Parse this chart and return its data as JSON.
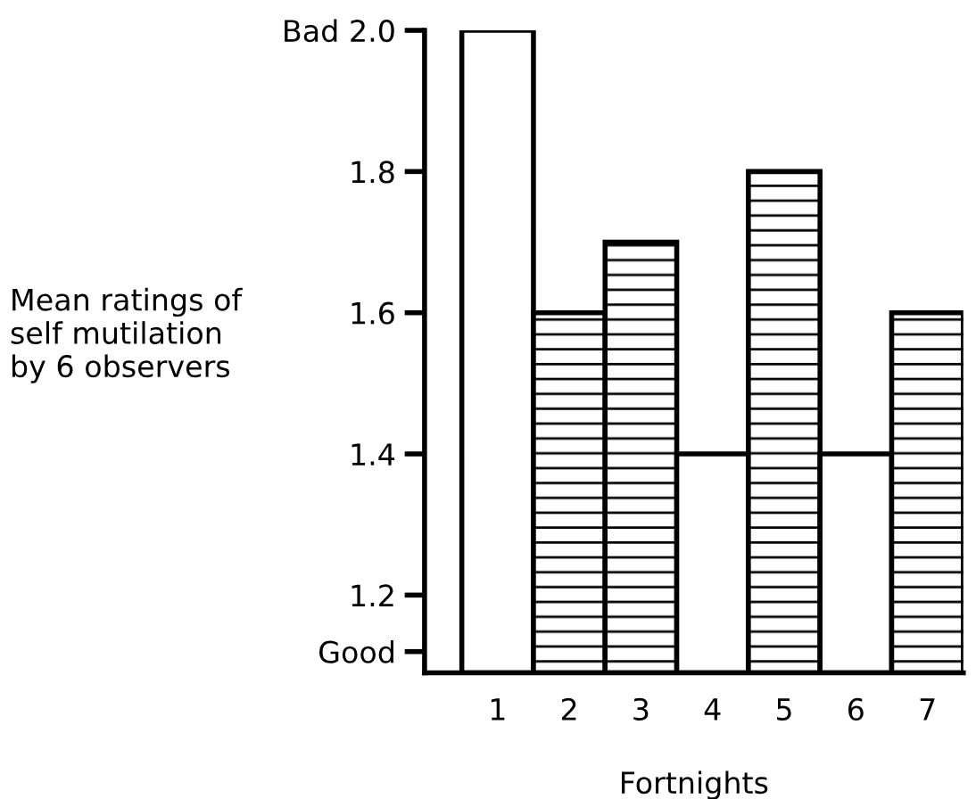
{
  "chart_data": {
    "type": "bar",
    "xlabel": "Fortnights",
    "ylabel": "Mean ratings of\nself mutilation\nby 6 observers",
    "categories": [
      "1",
      "2",
      "3",
      "4",
      "5",
      "6",
      "7"
    ],
    "values": [
      2.0,
      1.6,
      1.7,
      1.4,
      1.8,
      1.4,
      1.6
    ],
    "colors": [
      "#ffffff",
      "#000000",
      "#000000",
      "#ffffff",
      "#000000",
      "#ffffff",
      "#000000"
    ],
    "ylim": [
      1.09,
      2.0
    ],
    "yticks": [
      {
        "value": 1.12,
        "label": "Good"
      },
      1.2,
      1.4,
      1.6,
      1.8,
      {
        "value": 2.0,
        "label": "Bad 2.0"
      }
    ],
    "grid": false,
    "legend": false
  }
}
